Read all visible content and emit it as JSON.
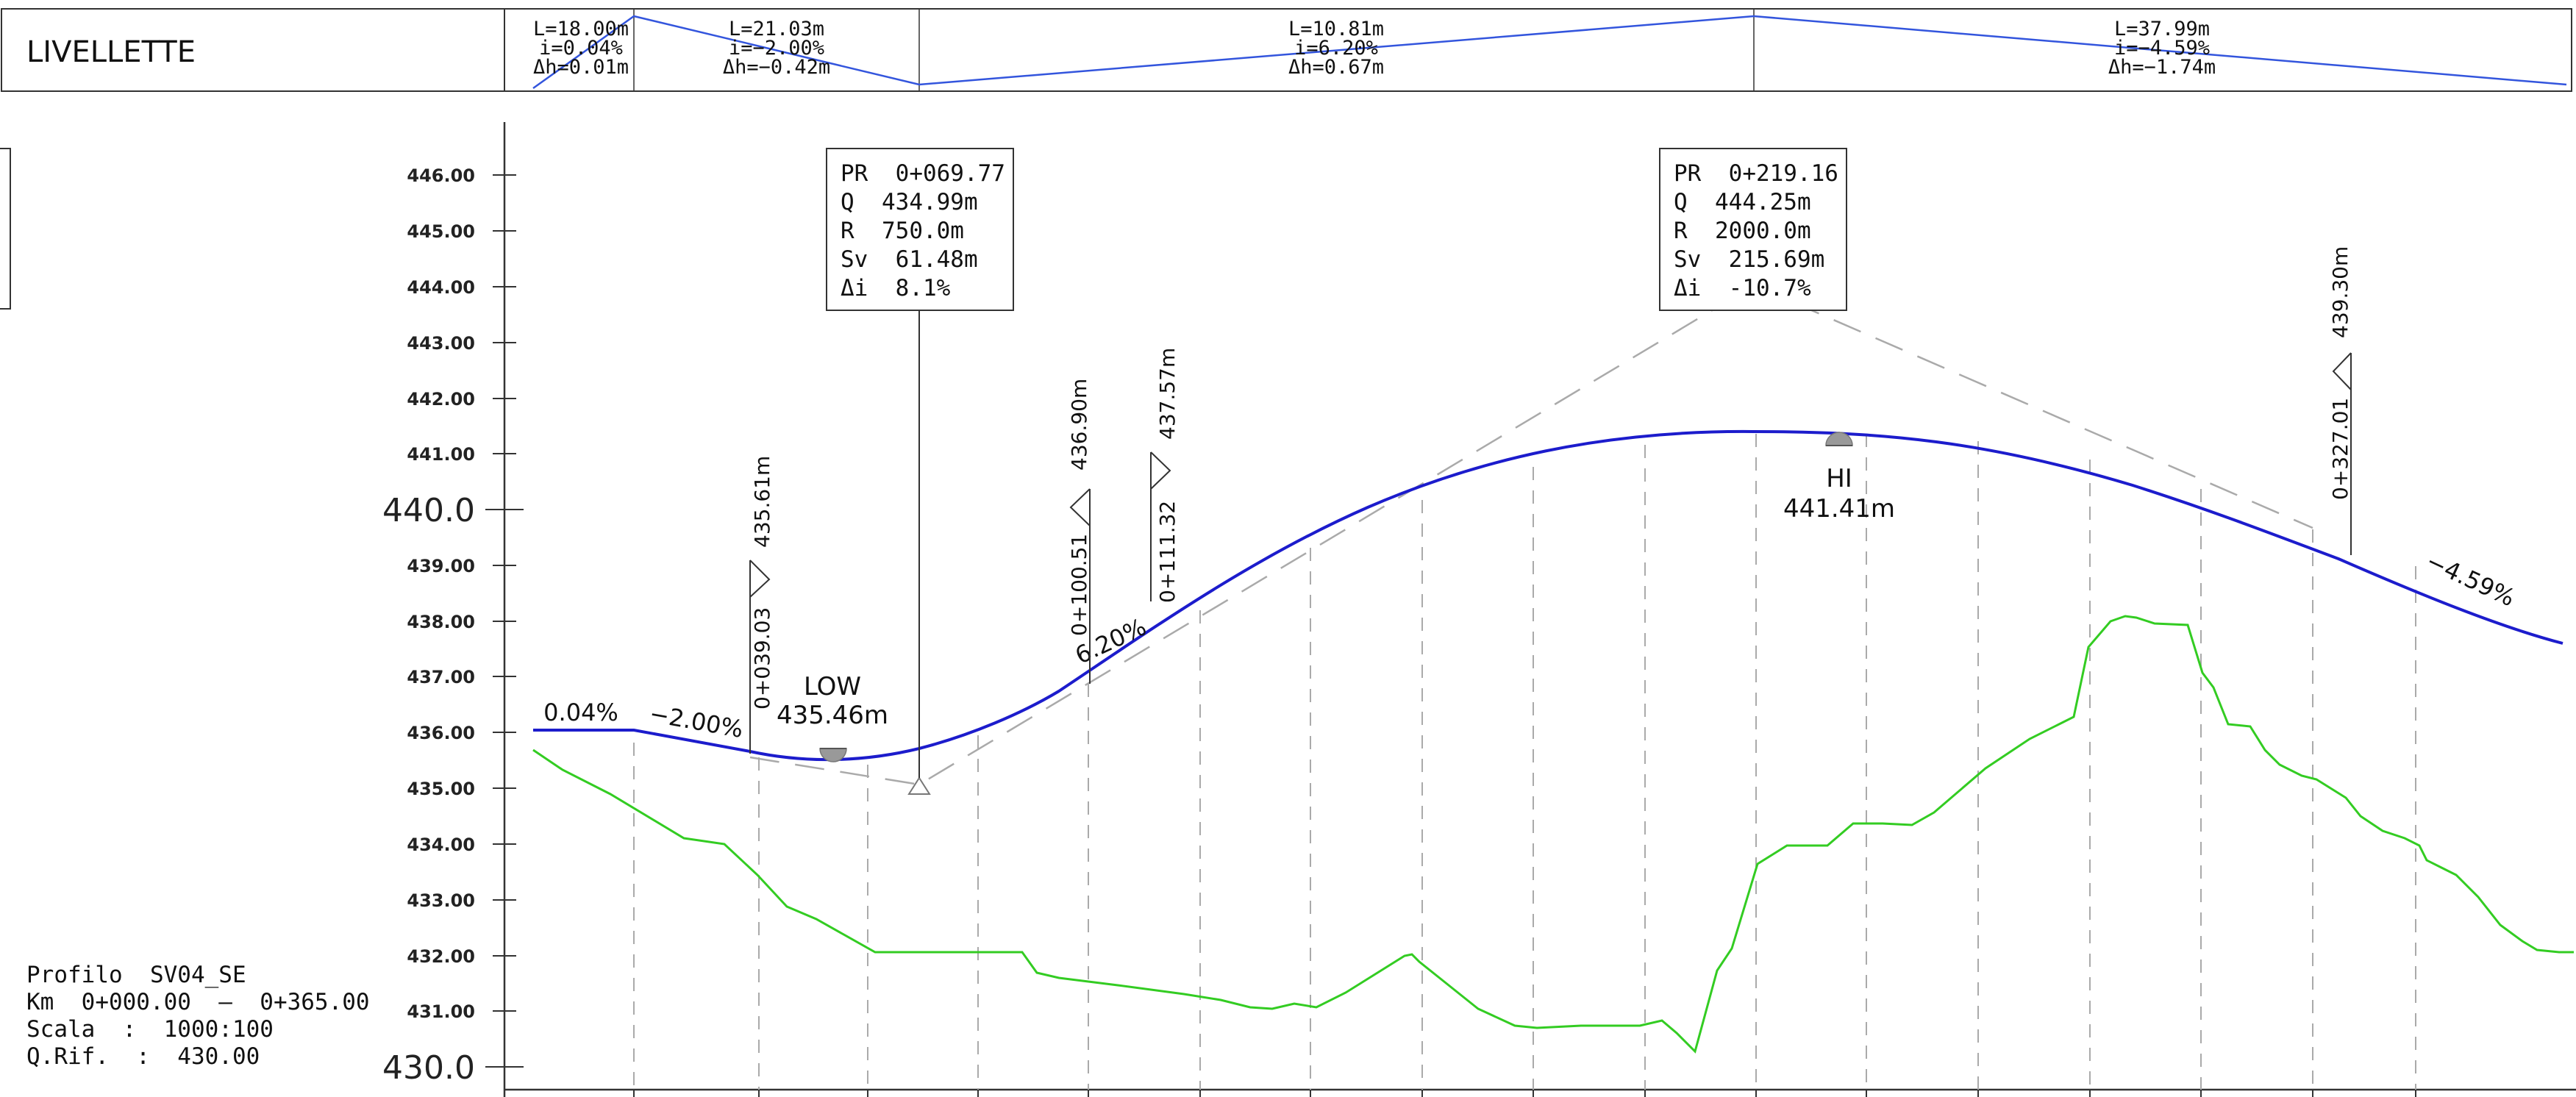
{
  "header": {
    "title": "LIVELLETTE",
    "segments": [
      {
        "L": "L=18.00m",
        "i": "i=0.04%",
        "dh": "Δh=0.01m"
      },
      {
        "L": "L=21.03m",
        "i": "i=−2.00%",
        "dh": "Δh=−0.42m"
      },
      {
        "L": "L=10.81m",
        "i": "i=6.20%",
        "dh": "Δh=0.67m"
      },
      {
        "L": "L=37.99m",
        "i": "i=−4.59%",
        "dh": "Δh=−1.74m"
      }
    ]
  },
  "axis": {
    "ticks": [
      "446.00",
      "445.00",
      "444.00",
      "443.00",
      "442.00",
      "441.00",
      "439.00",
      "438.00",
      "437.00",
      "436.00",
      "435.00",
      "434.00",
      "433.00",
      "432.00",
      "431.00"
    ],
    "major_labels": [
      "440.0",
      "430.0"
    ]
  },
  "info_boxes": [
    {
      "lines": [
        "PR  0+069.77",
        "Q  434.99m",
        "R  750.0m",
        "Sv  61.48m",
        "Δi  8.1%"
      ]
    },
    {
      "lines": [
        "PR  0+219.16",
        "Q  444.25m",
        "R  2000.0m",
        "Sv  215.69m",
        "Δi  -10.7%"
      ]
    }
  ],
  "slopes": [
    "0.04%",
    "−2.00%",
    "6.20%",
    "−4.59%"
  ],
  "points": [
    {
      "name": "LOW",
      "value": "435.46m"
    },
    {
      "name": "HI",
      "value": "441.41m"
    }
  ],
  "stations": [
    {
      "station": "0+039.03",
      "elevation": "435.61m"
    },
    {
      "station": "0+100.51",
      "elevation": "436.90m"
    },
    {
      "station": "0+111.32",
      "elevation": "437.57m"
    },
    {
      "station": "0+327.01",
      "elevation": "439.30m"
    }
  ],
  "profile_info": {
    "name": "Profilo  SV04_SE",
    "km": "Km  0+000.00  –  0+365.00",
    "scala": "Scala  :  1000:100",
    "qrif": "Q.Rif.  :  430.00"
  },
  "colors": {
    "design_line": "#1c1ccc",
    "ground_line": "#33cc22",
    "header_line": "#3355dd",
    "grid": "#bbbbbb",
    "text": "#111111"
  }
}
